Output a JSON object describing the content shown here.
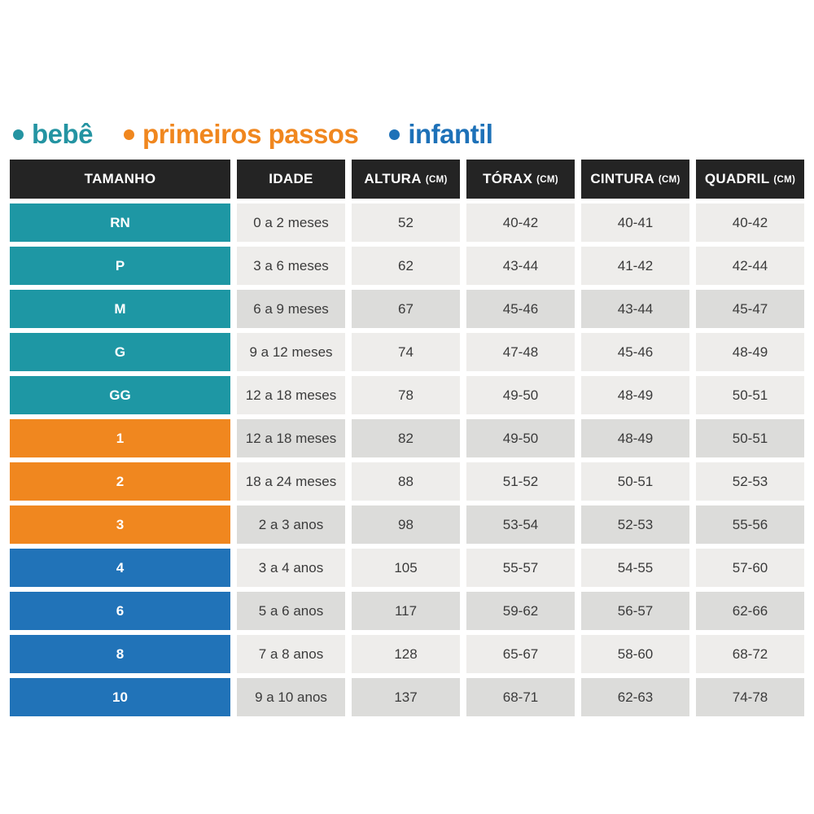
{
  "legend": {
    "items": [
      {
        "label": "bebê",
        "color": "#2494a2"
      },
      {
        "label": "primeiros passos",
        "color": "#f0871f"
      },
      {
        "label": "infantil",
        "color": "#1d71b8"
      }
    ]
  },
  "colors": {
    "header_bg": "#242424",
    "header_text": "#ffffff",
    "group_bebe": "#1e97a4",
    "group_primeiros_passos": "#f0871f",
    "group_infantil": "#2173b8",
    "cell_light": "#eeedeb",
    "cell_dark": "#dcdcda",
    "cell_text": "#3b3b3b"
  },
  "table": {
    "columns": [
      {
        "label": "TAMANHO",
        "unit": ""
      },
      {
        "label": "IDADE",
        "unit": ""
      },
      {
        "label": "ALTURA",
        "unit": "(CM)"
      },
      {
        "label": "TÓRAX",
        "unit": "(CM)"
      },
      {
        "label": "CINTURA",
        "unit": "(CM)"
      },
      {
        "label": "QUADRIL",
        "unit": "(CM)"
      }
    ],
    "rows": [
      {
        "size": "RN",
        "group": "bebe",
        "age": "0 a 2 meses",
        "height": "52",
        "chest": "40-42",
        "waist": "40-41",
        "hip": "40-42",
        "shade": "light"
      },
      {
        "size": "P",
        "group": "bebe",
        "age": "3 a 6 meses",
        "height": "62",
        "chest": "43-44",
        "waist": "41-42",
        "hip": "42-44",
        "shade": "light"
      },
      {
        "size": "M",
        "group": "bebe",
        "age": "6 a 9 meses",
        "height": "67",
        "chest": "45-46",
        "waist": "43-44",
        "hip": "45-47",
        "shade": "dark"
      },
      {
        "size": "G",
        "group": "bebe",
        "age": "9 a 12 meses",
        "height": "74",
        "chest": "47-48",
        "waist": "45-46",
        "hip": "48-49",
        "shade": "light"
      },
      {
        "size": "GG",
        "group": "bebe",
        "age": "12 a 18 meses",
        "height": "78",
        "chest": "49-50",
        "waist": "48-49",
        "hip": "50-51",
        "shade": "light"
      },
      {
        "size": "1",
        "group": "primeiros-passos",
        "age": "12 a 18 meses",
        "height": "82",
        "chest": "49-50",
        "waist": "48-49",
        "hip": "50-51",
        "shade": "dark"
      },
      {
        "size": "2",
        "group": "primeiros-passos",
        "age": "18 a 24 meses",
        "height": "88",
        "chest": "51-52",
        "waist": "50-51",
        "hip": "52-53",
        "shade": "light"
      },
      {
        "size": "3",
        "group": "primeiros-passos",
        "age": "2 a 3 anos",
        "height": "98",
        "chest": "53-54",
        "waist": "52-53",
        "hip": "55-56",
        "shade": "dark"
      },
      {
        "size": "4",
        "group": "infantil",
        "age": "3 a 4 anos",
        "height": "105",
        "chest": "55-57",
        "waist": "54-55",
        "hip": "57-60",
        "shade": "light"
      },
      {
        "size": "6",
        "group": "infantil",
        "age": "5 a 6 anos",
        "height": "117",
        "chest": "59-62",
        "waist": "56-57",
        "hip": "62-66",
        "shade": "dark"
      },
      {
        "size": "8",
        "group": "infantil",
        "age": "7 a 8 anos",
        "height": "128",
        "chest": "65-67",
        "waist": "58-60",
        "hip": "68-72",
        "shade": "light"
      },
      {
        "size": "10",
        "group": "infantil",
        "age": "9 a 10 anos",
        "height": "137",
        "chest": "68-71",
        "waist": "62-63",
        "hip": "74-78",
        "shade": "dark"
      }
    ]
  }
}
